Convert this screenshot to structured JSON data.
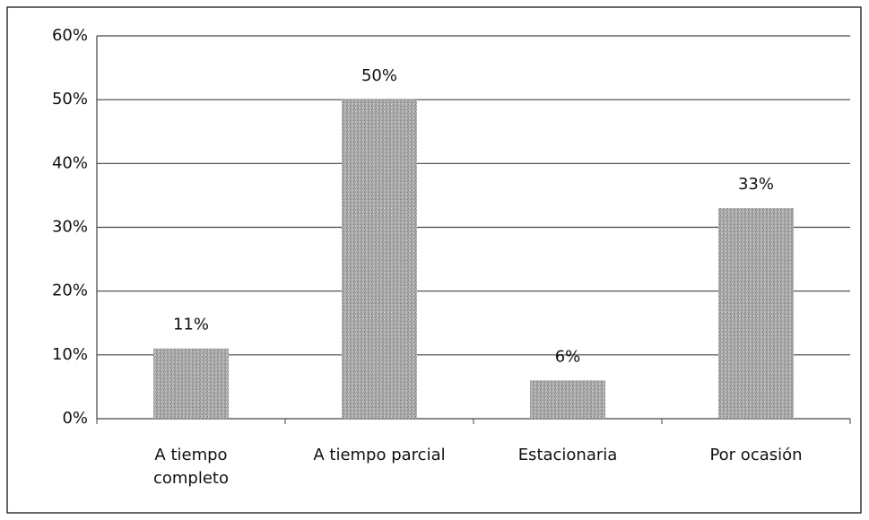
{
  "chart_data": {
    "type": "bar",
    "categories": [
      "A tiempo\ncompleto",
      "A tiempo parcial",
      "Estacionaria",
      "Por ocasión"
    ],
    "values": [
      11,
      50,
      6,
      33
    ],
    "value_labels": [
      "11%",
      "50%",
      "6%",
      "33%"
    ],
    "color": "#a9a9a9",
    "ylim": [
      0,
      60
    ],
    "yticks": [
      {
        "value": 0,
        "label": "0%"
      },
      {
        "value": 10,
        "label": "10%"
      },
      {
        "value": 20,
        "label": "20%"
      },
      {
        "value": 30,
        "label": "30%"
      },
      {
        "value": 40,
        "label": "40%"
      },
      {
        "value": 50,
        "label": "50%"
      },
      {
        "value": 60,
        "label": "60%"
      }
    ],
    "grid": true
  }
}
